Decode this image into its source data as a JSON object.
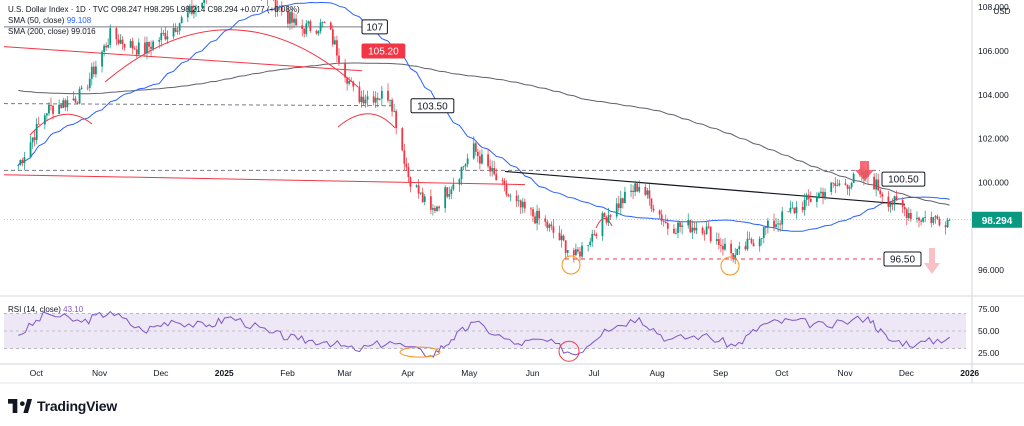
{
  "header": {
    "title": "U.S. Dollar Index · 1D · TVC",
    "ohlc": "O98.247 H98.295 L98.214 C98.294 +0.077 (+0.08%)",
    "sma50_label": "SMA (50, close)",
    "sma50_value": "99.108",
    "sma200_label": "SMA (200, close)",
    "sma200_value": "99.016"
  },
  "currency": "USD",
  "rsi": {
    "label": "RSI (14, close)",
    "value": "43.10"
  },
  "brand": {
    "name": "TradingView"
  },
  "colors": {
    "up": "#089981",
    "down": "#f23645",
    "sma50": "#2962ff",
    "sma200": "#5d606b",
    "rsi": "#7e57c2",
    "rsi_band": "#ede7f6",
    "arc": "#f23645",
    "circle": "#f7931a",
    "price_tag": "#089981",
    "label_105": "#f23645"
  },
  "chart_data": {
    "type": "candlestick",
    "title": "U.S. Dollar Index",
    "interval": "1D",
    "source": "TVC",
    "y_axis_ticks": [
      "108.000",
      "106.000",
      "104.000",
      "102.000",
      "100.000",
      "96.000"
    ],
    "ylim": [
      95.3,
      109.8
    ],
    "x_axis_ticks": [
      "Oct",
      "Nov",
      "Dec",
      "2025",
      "Feb",
      "Mar",
      "Apr",
      "May",
      "Jun",
      "Jul",
      "Aug",
      "Sep",
      "Oct",
      "Nov",
      "Dec",
      "2026"
    ],
    "last_price": "98.294",
    "annotations": [
      {
        "label": "107",
        "value": 107.1,
        "style": "horizontal-line"
      },
      {
        "label": "105.20",
        "value": 105.2,
        "style": "descending-line"
      },
      {
        "label": "103.50",
        "value": 103.5,
        "style": "dashed-line"
      },
      {
        "label": "100.50",
        "value": 100.5,
        "style": "dashed-line"
      },
      {
        "label": "96.50",
        "value": 96.5,
        "style": "dashed-line"
      }
    ],
    "price_path": [
      [
        "2024-10-01",
        100.8
      ],
      [
        "2024-10-15",
        103.3
      ],
      [
        "2024-11-01",
        104.0
      ],
      [
        "2024-11-15",
        106.7
      ],
      [
        "2024-12-01",
        106.0
      ],
      [
        "2024-12-15",
        107.0
      ],
      [
        "2025-01-01",
        108.4
      ],
      [
        "2025-01-13",
        109.5
      ],
      [
        "2025-02-01",
        108.5
      ],
      [
        "2025-02-15",
        107.0
      ],
      [
        "2025-03-01",
        107.2
      ],
      [
        "2025-03-15",
        103.9
      ],
      [
        "2025-04-01",
        104.0
      ],
      [
        "2025-04-10",
        100.3
      ],
      [
        "2025-04-21",
        98.6
      ],
      [
        "2025-05-01",
        99.9
      ],
      [
        "2025-05-12",
        101.5
      ],
      [
        "2025-06-01",
        99.0
      ],
      [
        "2025-06-15",
        98.2
      ],
      [
        "2025-07-01",
        96.6
      ],
      [
        "2025-07-15",
        98.4
      ],
      [
        "2025-08-01",
        99.9
      ],
      [
        "2025-08-15",
        98.0
      ],
      [
        "2025-09-01",
        98.0
      ],
      [
        "2025-09-17",
        96.6
      ],
      [
        "2025-10-01",
        97.8
      ],
      [
        "2025-10-15",
        98.7
      ],
      [
        "2025-11-01",
        99.7
      ],
      [
        "2025-11-21",
        100.3
      ],
      [
        "2025-12-01",
        99.2
      ],
      [
        "2025-12-15",
        98.4
      ],
      [
        "2025-12-31",
        98.29
      ]
    ],
    "rsi_axis_ticks": [
      "75.00",
      "50.00",
      "25.00"
    ],
    "rsi_lim": [
      18,
      80
    ],
    "rsi_path": [
      [
        "2024-10-01",
        45
      ],
      [
        "2024-10-15",
        70
      ],
      [
        "2024-11-01",
        60
      ],
      [
        "2024-11-15",
        72
      ],
      [
        "2024-12-01",
        50
      ],
      [
        "2024-12-15",
        62
      ],
      [
        "2025-01-01",
        55
      ],
      [
        "2025-01-13",
        66
      ],
      [
        "2025-02-01",
        48
      ],
      [
        "2025-02-15",
        40
      ],
      [
        "2025-03-01",
        38
      ],
      [
        "2025-03-15",
        28
      ],
      [
        "2025-04-01",
        38
      ],
      [
        "2025-04-21",
        22
      ],
      [
        "2025-05-01",
        40
      ],
      [
        "2025-05-12",
        60
      ],
      [
        "2025-06-01",
        35
      ],
      [
        "2025-06-15",
        40
      ],
      [
        "2025-07-01",
        23
      ],
      [
        "2025-07-15",
        52
      ],
      [
        "2025-08-01",
        65
      ],
      [
        "2025-08-15",
        40
      ],
      [
        "2025-09-01",
        45
      ],
      [
        "2025-09-17",
        33
      ],
      [
        "2025-10-01",
        58
      ],
      [
        "2025-10-15",
        62
      ],
      [
        "2025-11-01",
        55
      ],
      [
        "2025-11-21",
        66
      ],
      [
        "2025-12-01",
        40
      ],
      [
        "2025-12-15",
        35
      ],
      [
        "2025-12-31",
        43
      ]
    ]
  }
}
